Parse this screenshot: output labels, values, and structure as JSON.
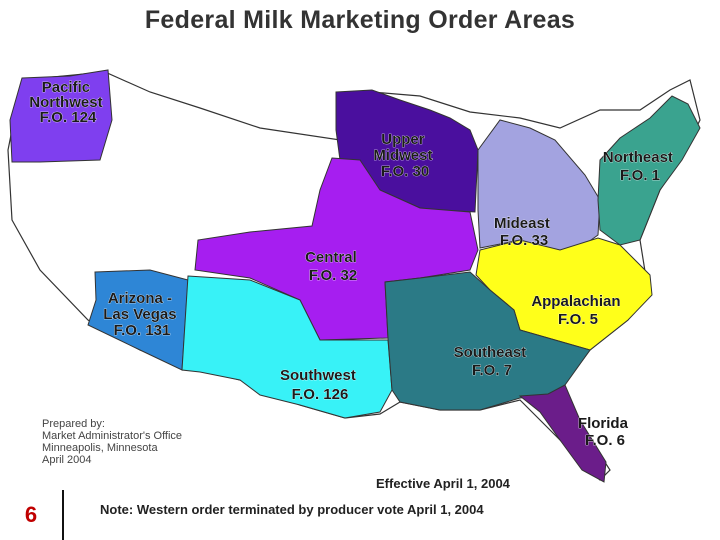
{
  "title": "Federal Milk Marketing Order Areas",
  "regions": [
    {
      "id": "pacific-northwest",
      "name": "Pacific Northwest",
      "order": "F.O. 124",
      "color": "#7f3fef"
    },
    {
      "id": "upper-midwest",
      "name": "Upper Midwest",
      "order": "F.O. 30",
      "color": "#4a0f9e"
    },
    {
      "id": "northeast",
      "name": "Northeast",
      "order": "F.O. 1",
      "color": "#3aa38f"
    },
    {
      "id": "mideast",
      "name": "Mideast",
      "order": "F.O. 33",
      "color": "#a3a3e0"
    },
    {
      "id": "central",
      "name": "Central",
      "order": "F.O. 32",
      "color": "#a61ef0"
    },
    {
      "id": "appalachian",
      "name": "Appalachian",
      "order": "F.O. 5",
      "color": "#ffff1a"
    },
    {
      "id": "arizona-las-vegas",
      "name": "Arizona - Las Vegas",
      "order": "F.O. 131",
      "color": "#2e86d6"
    },
    {
      "id": "southeast",
      "name": "Southeast",
      "order": "F.O. 7",
      "color": "#2b7a86"
    },
    {
      "id": "southwest",
      "name": "Southwest",
      "order": "F.O. 126",
      "color": "#38f2f7"
    },
    {
      "id": "florida",
      "name": "Florida",
      "order": "F.O. 6",
      "color": "#6b1d8a"
    }
  ],
  "labels": {
    "pacific_northwest": [
      "Pacific",
      "Northwest",
      "F.O. 124"
    ],
    "upper_midwest": [
      "Upper",
      "Midwest",
      "F.O. 30"
    ],
    "northeast": [
      "Northeast",
      "F.O. 1"
    ],
    "mideast": [
      "Mideast",
      "F.O. 33"
    ],
    "central": [
      "Central",
      "F.O. 32"
    ],
    "arizona": [
      "Arizona -",
      "Las Vegas",
      "F.O. 131"
    ],
    "appalachian": [
      "Appalachian",
      "F.O. 5"
    ],
    "southeast": [
      "Southeast",
      "F.O. 7"
    ],
    "southwest": [
      "Southwest",
      "F.O. 126"
    ],
    "florida": [
      "Florida",
      "F.O. 6"
    ]
  },
  "prepared_by": {
    "heading": "Prepared by:",
    "line1": "Market Administrator's Office",
    "line2": "Minneapolis, Minnesota",
    "line3": "April 2004"
  },
  "effective": "Effective April 1, 2004",
  "note": "Note: Western order terminated by producer vote April 1, 2004",
  "page_number": "6"
}
